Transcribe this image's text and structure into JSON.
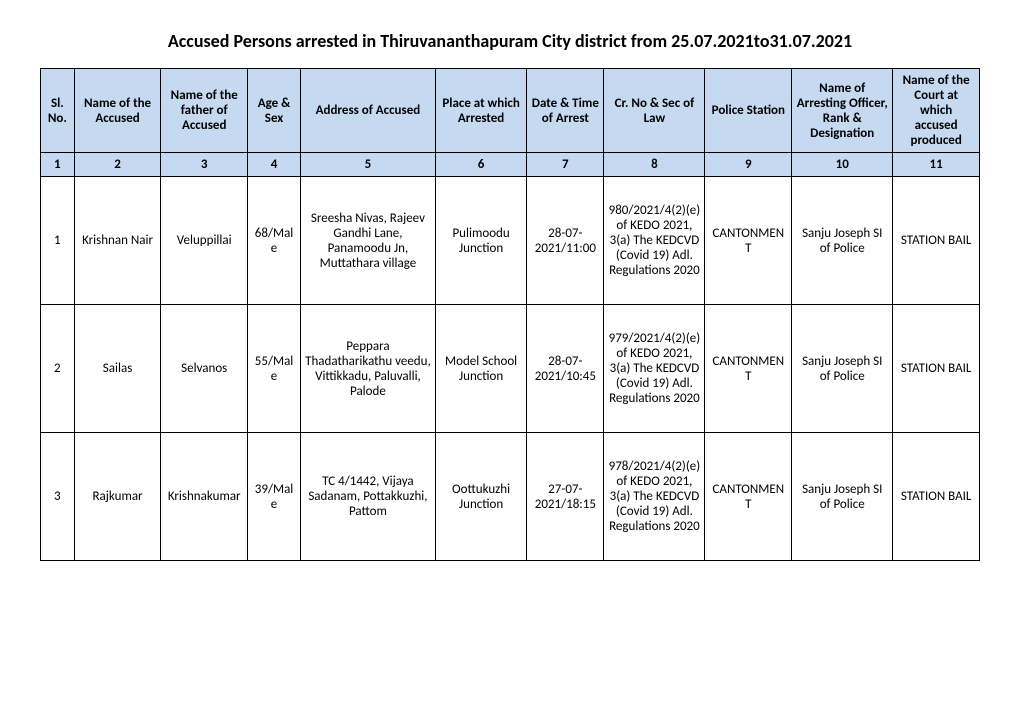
{
  "title": "Accused Persons arrested in   Thiruvananthapuram City   district from   25.07.2021to31.07.2021",
  "columns": [
    "Sl. No.",
    "Name of the Accused",
    "Name of the father of Accused",
    "Age & Sex",
    "Address of Accused",
    "Place at which Arrested",
    "Date & Time of Arrest",
    "Cr. No & Sec of Law",
    "Police Station",
    "Name of Arresting Officer, Rank & Designation",
    "Name of the Court at which accused produced"
  ],
  "colnums": [
    "1",
    "2",
    "3",
    "4",
    "5",
    "6",
    "7",
    "8",
    "9",
    "10",
    "11"
  ],
  "rows": [
    {
      "sl": "1",
      "name": "Krishnan Nair",
      "father": "Veluppillai",
      "age_sex": "68/Male",
      "address": "Sreesha Nivas, Rajeev Gandhi Lane, Panamoodu Jn, Muttathara village",
      "place": "Pulimoodu Junction",
      "datetime": "28-07-2021/11:00",
      "crno": "980/2021/4(2)(e) of KEDO 2021, 3(a) The KEDCVD (Covid 19) Adl. Regulations 2020",
      "station": "CANTONMENT",
      "officer": "Sanju Joseph SI of Police",
      "court": "STATION BAIL"
    },
    {
      "sl": "2",
      "name": "Sailas",
      "father": "Selvanos",
      "age_sex": "55/Male",
      "address": "Peppara Thadatharikathu veedu, Vittikkadu, Paluvalli, Palode",
      "place": "Model School Junction",
      "datetime": "28-07-2021/10:45",
      "crno": "979/2021/4(2)(e) of KEDO 2021, 3(a) The KEDCVD (Covid 19) Adl. Regulations 2020",
      "station": "CANTONMENT",
      "officer": "Sanju Joseph SI of Police",
      "court": "STATION BAIL"
    },
    {
      "sl": "3",
      "name": "Rajkumar",
      "father": "Krishnakumar",
      "age_sex": "39/Male",
      "address": "TC 4/1442, Vijaya Sadanam, Pottakkuzhi, Pattom",
      "place": "Oottukuzhi Junction",
      "datetime": "27-07-2021/18:15",
      "crno": "978/2021/4(2)(e) of KEDO 2021, 3(a) The KEDCVD (Covid 19) Adl. Regulations 2020",
      "station": "CANTONMENT",
      "officer": "Sanju Joseph SI of Police",
      "court": "STATION BAIL"
    }
  ]
}
